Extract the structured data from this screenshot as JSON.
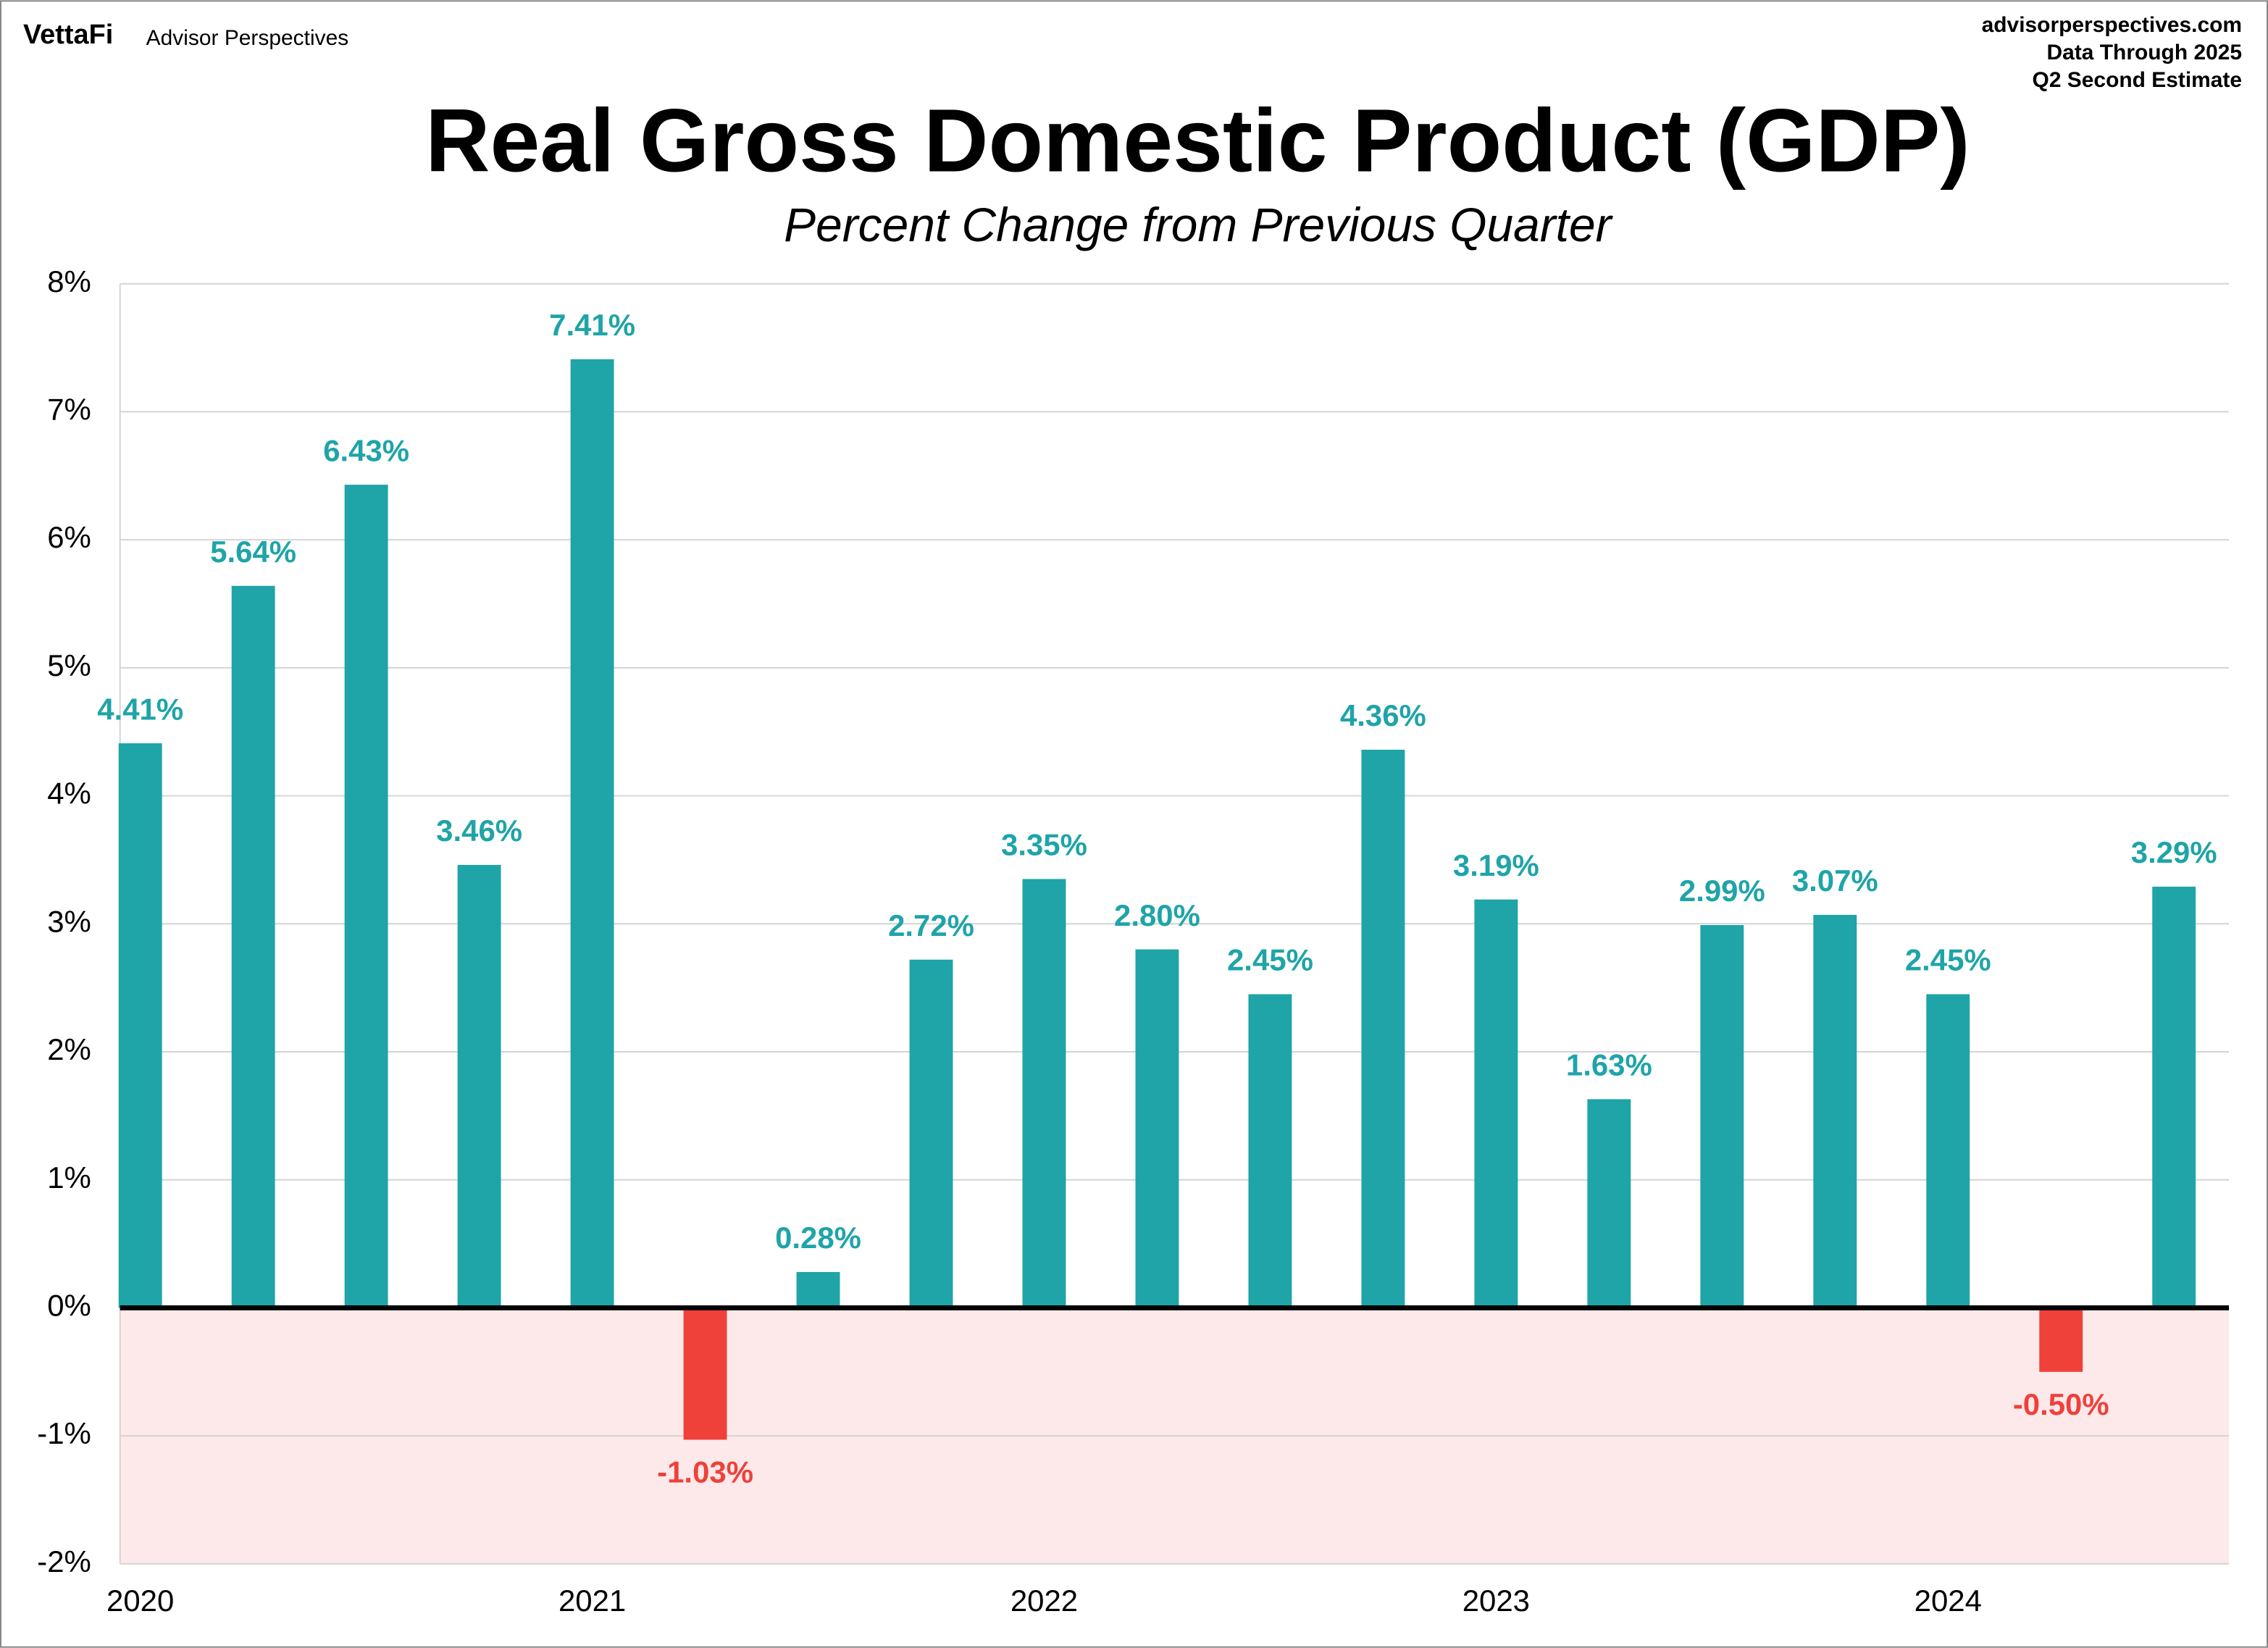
{
  "brand": "VettaFi",
  "brand_sub": "Advisor Perspectives",
  "source": [
    "advisorperspectives.com",
    "Data Through 2025",
    "Q2 Second Estimate"
  ],
  "chart_data": {
    "type": "bar",
    "title": "Real Gross Domestic Product (GDP)",
    "subtitle": "Percent Change from Previous Quarter",
    "categories": [
      "2020",
      null,
      null,
      null,
      "2021",
      null,
      null,
      null,
      "2022",
      null,
      null,
      null,
      "2023",
      null,
      null,
      null,
      "2024",
      null,
      null
    ],
    "values": [
      4.41,
      5.64,
      6.43,
      3.46,
      7.41,
      -1.03,
      0.28,
      2.72,
      3.35,
      2.8,
      2.45,
      4.36,
      3.19,
      1.63,
      2.99,
      3.07,
      2.45,
      -0.5,
      3.29
    ],
    "value_labels": [
      "4.41%",
      "5.64%",
      "6.43%",
      "3.46%",
      "7.41%",
      "-1.03%",
      "0.28%",
      "2.72%",
      "3.35%",
      "2.80%",
      "2.45%",
      "4.36%",
      "3.19%",
      "1.63%",
      "2.99%",
      "3.07%",
      "2.45%",
      "-0.50%",
      "3.29%"
    ],
    "color": "#1fa4a8",
    "negative_color": "#f0403a",
    "negative_region_color": "#fde9e9",
    "ylim": [
      -2,
      8
    ],
    "yticks": [
      {
        "value": -2,
        "label": "-2%"
      },
      {
        "value": -1,
        "label": "-1%"
      },
      {
        "value": 0,
        "label": "0%"
      },
      {
        "value": 1,
        "label": "1%"
      },
      {
        "value": 2,
        "label": "2%"
      },
      {
        "value": 3,
        "label": "3%"
      },
      {
        "value": 4,
        "label": "4%"
      },
      {
        "value": 5,
        "label": "5%"
      },
      {
        "value": 6,
        "label": "6%"
      },
      {
        "value": 7,
        "label": "7%"
      },
      {
        "value": 8,
        "label": "8%"
      }
    ],
    "grid": true
  }
}
